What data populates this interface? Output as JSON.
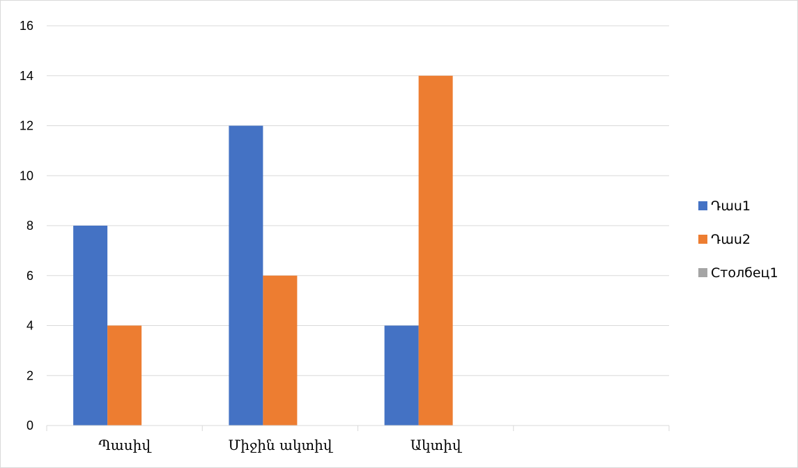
{
  "chart_data": {
    "type": "bar",
    "categories": [
      "Պասիվ",
      "Միջին ակտիվ",
      "Ակտիվ",
      ""
    ],
    "series": [
      {
        "name": "Դաս1",
        "values": [
          8,
          12,
          4,
          null
        ],
        "color": "#4472C4"
      },
      {
        "name": "Դաս2",
        "values": [
          4,
          6,
          14,
          null
        ],
        "color": "#ED7D31"
      },
      {
        "name": "Столбец1",
        "values": [
          null,
          null,
          null,
          null
        ],
        "color": "#A5A5A5"
      }
    ],
    "ylim": [
      0,
      16
    ],
    "yticks": [
      0,
      2,
      4,
      6,
      8,
      10,
      12,
      14,
      16
    ],
    "grid": true,
    "legend": "right",
    "gridline_color": "#d9d9d9"
  }
}
